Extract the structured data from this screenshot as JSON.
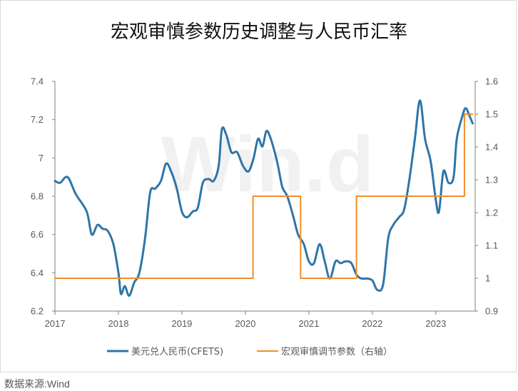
{
  "source": "数据来源:Wind",
  "watermark": "Win.d",
  "colors": {
    "series_left": "#2e75a8",
    "series_right": "#f28c28",
    "axis": "#7f7f7f",
    "text": "#595959",
    "title": "#111111",
    "watermark": "#f1f1f1"
  },
  "chart_data": {
    "type": "line",
    "title": "宏观审慎参数历史调整与人民币汇率",
    "xlabel": "",
    "x_ticks": [
      "2017",
      "2018",
      "2019",
      "2020",
      "2021",
      "2022",
      "2023"
    ],
    "xlim": [
      2017,
      2023.62
    ],
    "y_left": {
      "ylabel": "",
      "ylim": [
        6.2,
        7.4
      ],
      "ticks": [
        "6.2",
        "6.4",
        "6.6",
        "6.8",
        "7",
        "7.2",
        "7.4"
      ]
    },
    "y_right": {
      "ylabel": "",
      "ylim": [
        0.9,
        1.6
      ],
      "ticks": [
        "0.9",
        "1",
        "1.1",
        "1.2",
        "1.3",
        "1.4",
        "1.5",
        "1.6"
      ]
    },
    "grid": false,
    "legend_position": "bottom",
    "series": [
      {
        "name": "美元兑人民币(CFETS)",
        "axis": "left",
        "color": "#2e75a8",
        "points": [
          [
            2017.0,
            6.88
          ],
          [
            2017.08,
            6.87
          ],
          [
            2017.2,
            6.9
          ],
          [
            2017.33,
            6.81
          ],
          [
            2017.5,
            6.72
          ],
          [
            2017.58,
            6.6
          ],
          [
            2017.67,
            6.65
          ],
          [
            2017.75,
            6.63
          ],
          [
            2017.83,
            6.62
          ],
          [
            2017.92,
            6.55
          ],
          [
            2018.0,
            6.4
          ],
          [
            2018.04,
            6.29
          ],
          [
            2018.1,
            6.33
          ],
          [
            2018.17,
            6.28
          ],
          [
            2018.25,
            6.35
          ],
          [
            2018.33,
            6.4
          ],
          [
            2018.42,
            6.58
          ],
          [
            2018.5,
            6.82
          ],
          [
            2018.58,
            6.84
          ],
          [
            2018.67,
            6.88
          ],
          [
            2018.75,
            6.97
          ],
          [
            2018.83,
            6.93
          ],
          [
            2018.92,
            6.84
          ],
          [
            2019.0,
            6.72
          ],
          [
            2019.08,
            6.69
          ],
          [
            2019.17,
            6.72
          ],
          [
            2019.25,
            6.74
          ],
          [
            2019.33,
            6.87
          ],
          [
            2019.42,
            6.89
          ],
          [
            2019.5,
            6.88
          ],
          [
            2019.58,
            6.96
          ],
          [
            2019.63,
            7.15
          ],
          [
            2019.7,
            7.12
          ],
          [
            2019.78,
            7.03
          ],
          [
            2019.87,
            7.03
          ],
          [
            2019.96,
            6.96
          ],
          [
            2020.05,
            6.93
          ],
          [
            2020.13,
            7.0
          ],
          [
            2020.2,
            7.1
          ],
          [
            2020.27,
            7.06
          ],
          [
            2020.33,
            7.14
          ],
          [
            2020.4,
            7.1
          ],
          [
            2020.5,
            6.98
          ],
          [
            2020.58,
            6.85
          ],
          [
            2020.66,
            6.8
          ],
          [
            2020.75,
            6.7
          ],
          [
            2020.83,
            6.6
          ],
          [
            2020.92,
            6.55
          ],
          [
            2021.0,
            6.46
          ],
          [
            2021.08,
            6.45
          ],
          [
            2021.17,
            6.55
          ],
          [
            2021.25,
            6.46
          ],
          [
            2021.33,
            6.37
          ],
          [
            2021.42,
            6.46
          ],
          [
            2021.5,
            6.45
          ],
          [
            2021.58,
            6.46
          ],
          [
            2021.67,
            6.45
          ],
          [
            2021.75,
            6.39
          ],
          [
            2021.83,
            6.37
          ],
          [
            2021.92,
            6.37
          ],
          [
            2022.0,
            6.36
          ],
          [
            2022.08,
            6.31
          ],
          [
            2022.17,
            6.34
          ],
          [
            2022.25,
            6.58
          ],
          [
            2022.33,
            6.65
          ],
          [
            2022.42,
            6.69
          ],
          [
            2022.5,
            6.73
          ],
          [
            2022.58,
            6.88
          ],
          [
            2022.67,
            7.1
          ],
          [
            2022.75,
            7.3
          ],
          [
            2022.83,
            7.1
          ],
          [
            2022.92,
            6.98
          ],
          [
            2023.0,
            6.78
          ],
          [
            2023.05,
            6.72
          ],
          [
            2023.12,
            6.93
          ],
          [
            2023.2,
            6.87
          ],
          [
            2023.28,
            6.9
          ],
          [
            2023.33,
            7.1
          ],
          [
            2023.42,
            7.22
          ],
          [
            2023.47,
            7.26
          ],
          [
            2023.53,
            7.22
          ],
          [
            2023.58,
            7.18
          ]
        ]
      },
      {
        "name": "宏观审慎调节参数（右轴）",
        "axis": "right",
        "color": "#f28c28",
        "points": [
          [
            2017.0,
            1.0
          ],
          [
            2020.12,
            1.0
          ],
          [
            2020.12,
            1.25
          ],
          [
            2020.87,
            1.25
          ],
          [
            2020.87,
            1.0
          ],
          [
            2021.75,
            1.0
          ],
          [
            2021.75,
            1.25
          ],
          [
            2023.45,
            1.25
          ],
          [
            2023.45,
            1.5
          ],
          [
            2023.58,
            1.5
          ]
        ]
      }
    ]
  }
}
